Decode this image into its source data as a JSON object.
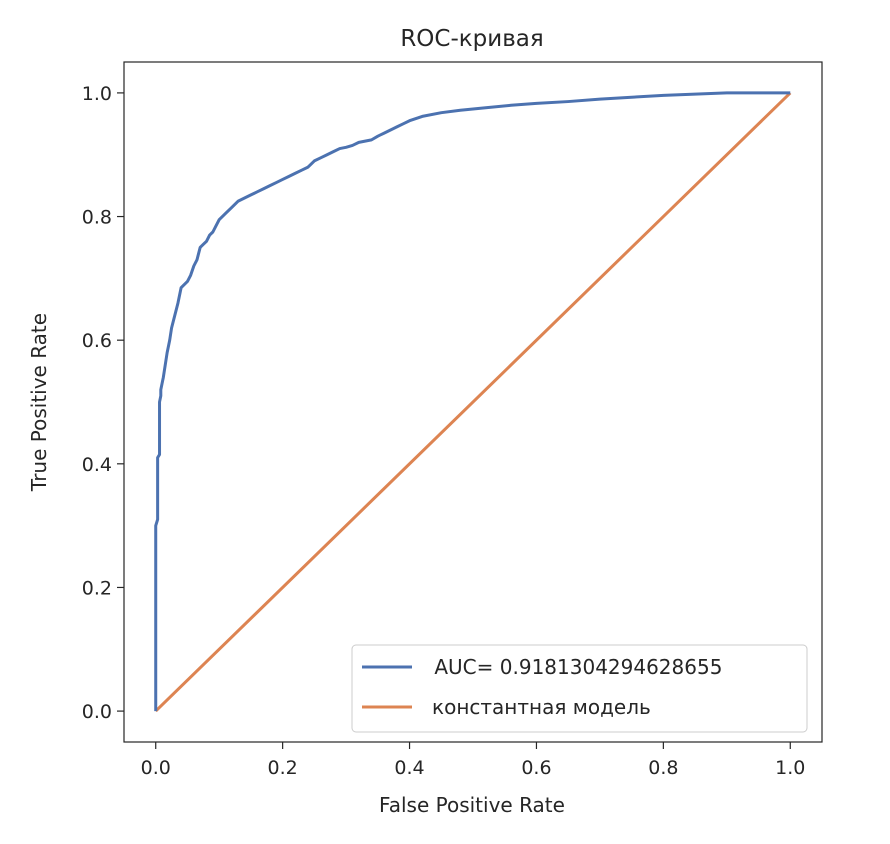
{
  "chart_data": {
    "type": "line",
    "title": "ROC-кривая",
    "xlabel": "False Positive Rate",
    "ylabel": "True Positive Rate",
    "xlim": [
      -0.05,
      1.05
    ],
    "ylim": [
      -0.05,
      1.05
    ],
    "x_ticks": [
      0.0,
      0.2,
      0.4,
      0.6,
      0.8,
      1.0
    ],
    "y_ticks": [
      0.0,
      0.2,
      0.4,
      0.6,
      0.8,
      1.0
    ],
    "x_tick_labels": [
      "0.0",
      "0.2",
      "0.4",
      "0.6",
      "0.8",
      "1.0"
    ],
    "y_tick_labels": [
      "0.0",
      "0.2",
      "0.4",
      "0.6",
      "0.8",
      "1.0"
    ],
    "grid": false,
    "legend_position": "lower-right",
    "series": [
      {
        "name": " AUC= 0.9181304294628655",
        "color": "#4c72b0",
        "x": [
          0.0,
          0.0,
          0.003,
          0.003,
          0.006,
          0.006,
          0.008,
          0.008,
          0.012,
          0.015,
          0.018,
          0.022,
          0.025,
          0.03,
          0.035,
          0.04,
          0.045,
          0.05,
          0.055,
          0.06,
          0.065,
          0.07,
          0.075,
          0.08,
          0.085,
          0.09,
          0.095,
          0.1,
          0.105,
          0.11,
          0.12,
          0.13,
          0.14,
          0.15,
          0.16,
          0.17,
          0.18,
          0.19,
          0.2,
          0.21,
          0.22,
          0.23,
          0.24,
          0.25,
          0.26,
          0.27,
          0.28,
          0.29,
          0.3,
          0.31,
          0.32,
          0.33,
          0.34,
          0.35,
          0.36,
          0.37,
          0.38,
          0.39,
          0.4,
          0.42,
          0.45,
          0.48,
          0.52,
          0.56,
          0.6,
          0.65,
          0.7,
          0.75,
          0.8,
          0.85,
          0.9,
          0.95,
          1.0
        ],
        "y": [
          0.0,
          0.3,
          0.31,
          0.41,
          0.415,
          0.5,
          0.51,
          0.52,
          0.54,
          0.56,
          0.58,
          0.6,
          0.62,
          0.64,
          0.66,
          0.685,
          0.69,
          0.695,
          0.705,
          0.72,
          0.73,
          0.75,
          0.755,
          0.76,
          0.77,
          0.775,
          0.785,
          0.795,
          0.8,
          0.805,
          0.815,
          0.825,
          0.83,
          0.835,
          0.84,
          0.845,
          0.85,
          0.855,
          0.86,
          0.865,
          0.87,
          0.875,
          0.88,
          0.89,
          0.895,
          0.9,
          0.905,
          0.91,
          0.912,
          0.915,
          0.92,
          0.922,
          0.924,
          0.93,
          0.935,
          0.94,
          0.945,
          0.95,
          0.955,
          0.962,
          0.968,
          0.972,
          0.976,
          0.98,
          0.983,
          0.986,
          0.99,
          0.993,
          0.996,
          0.998,
          1.0,
          1.0,
          1.0
        ]
      },
      {
        "name": "константная модель",
        "color": "#dd8452",
        "x": [
          0.0,
          1.0
        ],
        "y": [
          0.0,
          1.0
        ]
      }
    ]
  }
}
